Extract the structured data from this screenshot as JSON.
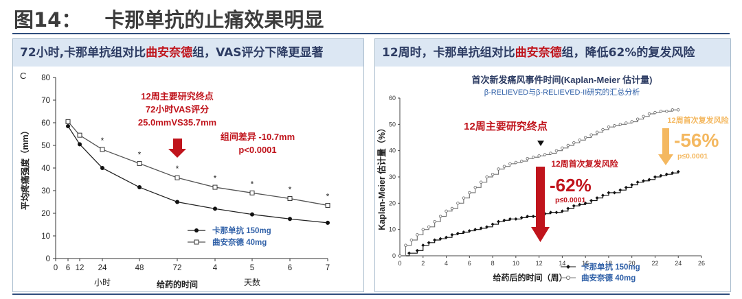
{
  "figure": {
    "number_label": "图14：",
    "title": "卡那单抗的止痛效果明显"
  },
  "colors": {
    "accent": "#c0141c",
    "header_bg": "#dce7f3",
    "rule": "#2f4d7d",
    "orange": "#f4b860",
    "legend_blue": "#2e5fa7"
  },
  "chart_data": [
    {
      "type": "line",
      "panel_title_prefix": "72小时,卡那单抗组对比",
      "panel_title_highlight": "曲安奈德",
      "panel_title_suffix": "组，VAS评分下降更显著",
      "panel_letter": "C",
      "ylabel": "平均疼痛强度（mm）",
      "xlabel": "给药的时间",
      "ylim": [
        0,
        80
      ],
      "yticks": [
        "0",
        "10",
        "20",
        "30",
        "40",
        "50",
        "60",
        "70",
        "80"
      ],
      "x_tick_labels": [
        "0",
        "6",
        "12",
        "24",
        "48",
        "72",
        "4",
        "5",
        "6",
        "7"
      ],
      "x_unit_labels": [
        "小时",
        "天数"
      ],
      "annotations": {
        "endpoint_lines": [
          "12周主要研究终点",
          "72小时VAS评分",
          "25.0mmVS35.7mm"
        ],
        "diff_lines": [
          "组间差异 -10.7mm",
          "p<0.0001"
        ],
        "significance": "*"
      },
      "series": [
        {
          "name": "卡那单抗 150mg",
          "marker": "filled-circle",
          "values": [
            58.5,
            50.5,
            40,
            31.5,
            25,
            22,
            19.5,
            17.5,
            15.8
          ]
        },
        {
          "name": "曲安奈德 40mg",
          "marker": "open-square",
          "values": [
            60.5,
            54.5,
            48.2,
            42,
            35.7,
            31.5,
            29,
            26.5,
            23.5
          ]
        }
      ],
      "x_positions": [
        "6",
        "12",
        "24",
        "48",
        "72",
        "4",
        "5",
        "6",
        "7"
      ],
      "significant_points": [
        2,
        3,
        4,
        5,
        6,
        7,
        8
      ]
    },
    {
      "type": "line",
      "panel_title_prefix": "12周时，卡那单抗组对比",
      "panel_title_highlight": "曲安奈德",
      "panel_title_suffix": "组，降低62%的复发风险",
      "title": "首次新发痛风事件时间(Kaplan-Meier 估计量)",
      "subtitle": "β-RELIEVED与β-RELIEVED-II研究的汇总分析",
      "ylabel": "Kaplan-Meier 估计量（%）",
      "xlabel": "给药后的时间（周）",
      "xlim": [
        0,
        26
      ],
      "ylim": [
        0,
        60
      ],
      "xticks": [
        0,
        2,
        4,
        6,
        8,
        10,
        12,
        14,
        16,
        18,
        20,
        22,
        24,
        26
      ],
      "yticks": [
        0,
        10,
        20,
        30,
        40,
        50,
        60
      ],
      "annotations": {
        "endpoint": "12周主要研究终点",
        "recurrence_label": "12周首次复发风险",
        "recurrence_value": "-62%",
        "recurrence_p": "p≤0.0001",
        "recurrence24_label": "12周首次复发风险",
        "recurrence24_value": "-56%",
        "recurrence24_p": "p≤0.0001"
      },
      "series": [
        {
          "name": "卡那单抗 150mg",
          "marker": "filled-diamond",
          "x": [
            0,
            0.8,
            1.5,
            2,
            2.5,
            3,
            3.5,
            4,
            4.5,
            5,
            5.5,
            6,
            6.5,
            7,
            7.5,
            8,
            8.5,
            9,
            9.5,
            10,
            10.5,
            11,
            11.5,
            12,
            12.5,
            13,
            13.5,
            14,
            14.5,
            15,
            15.5,
            16,
            16.5,
            17,
            17.5,
            18,
            18.5,
            19,
            19.5,
            20,
            20.5,
            21,
            21.5,
            22,
            22.5,
            23,
            23.5,
            24
          ],
          "y": [
            0,
            1,
            2,
            4,
            5,
            6,
            6.5,
            7,
            8,
            8.5,
            9,
            9.5,
            10,
            10.5,
            11,
            12,
            13,
            13.5,
            14,
            14,
            14.5,
            15,
            15,
            15.5,
            16,
            16.5,
            16.5,
            17,
            18,
            19,
            19.5,
            20,
            21,
            22,
            23,
            24,
            24,
            25,
            26,
            27,
            28,
            28.5,
            29,
            30,
            30.5,
            31,
            31.5,
            32
          ]
        },
        {
          "name": "曲安奈德 40mg",
          "marker": "open-circle",
          "x": [
            0,
            0.5,
            1,
            1.5,
            2,
            2.5,
            3,
            3.5,
            4,
            4.5,
            5,
            5.5,
            6,
            6.5,
            7,
            7.5,
            8,
            8.5,
            9,
            9.5,
            10,
            10.5,
            11,
            11.5,
            12,
            12.5,
            13,
            13.5,
            14,
            14.5,
            15,
            15.5,
            16,
            16.5,
            17,
            17.5,
            18,
            18.5,
            19,
            19.5,
            20,
            20.5,
            21,
            21.5,
            22,
            22.5,
            23,
            23.5,
            24
          ],
          "y": [
            0,
            4,
            6,
            8,
            10,
            11,
            13,
            15,
            17,
            18,
            20,
            22,
            24,
            26,
            28,
            30,
            31,
            33,
            34,
            35,
            35.5,
            36,
            37,
            37.5,
            38,
            38.5,
            39,
            40,
            41,
            42,
            43,
            44,
            45,
            46,
            47,
            48,
            49,
            49.5,
            50,
            50.5,
            51,
            52,
            53,
            54,
            54.5,
            55,
            55,
            55.5,
            55.5
          ]
        }
      ]
    }
  ]
}
